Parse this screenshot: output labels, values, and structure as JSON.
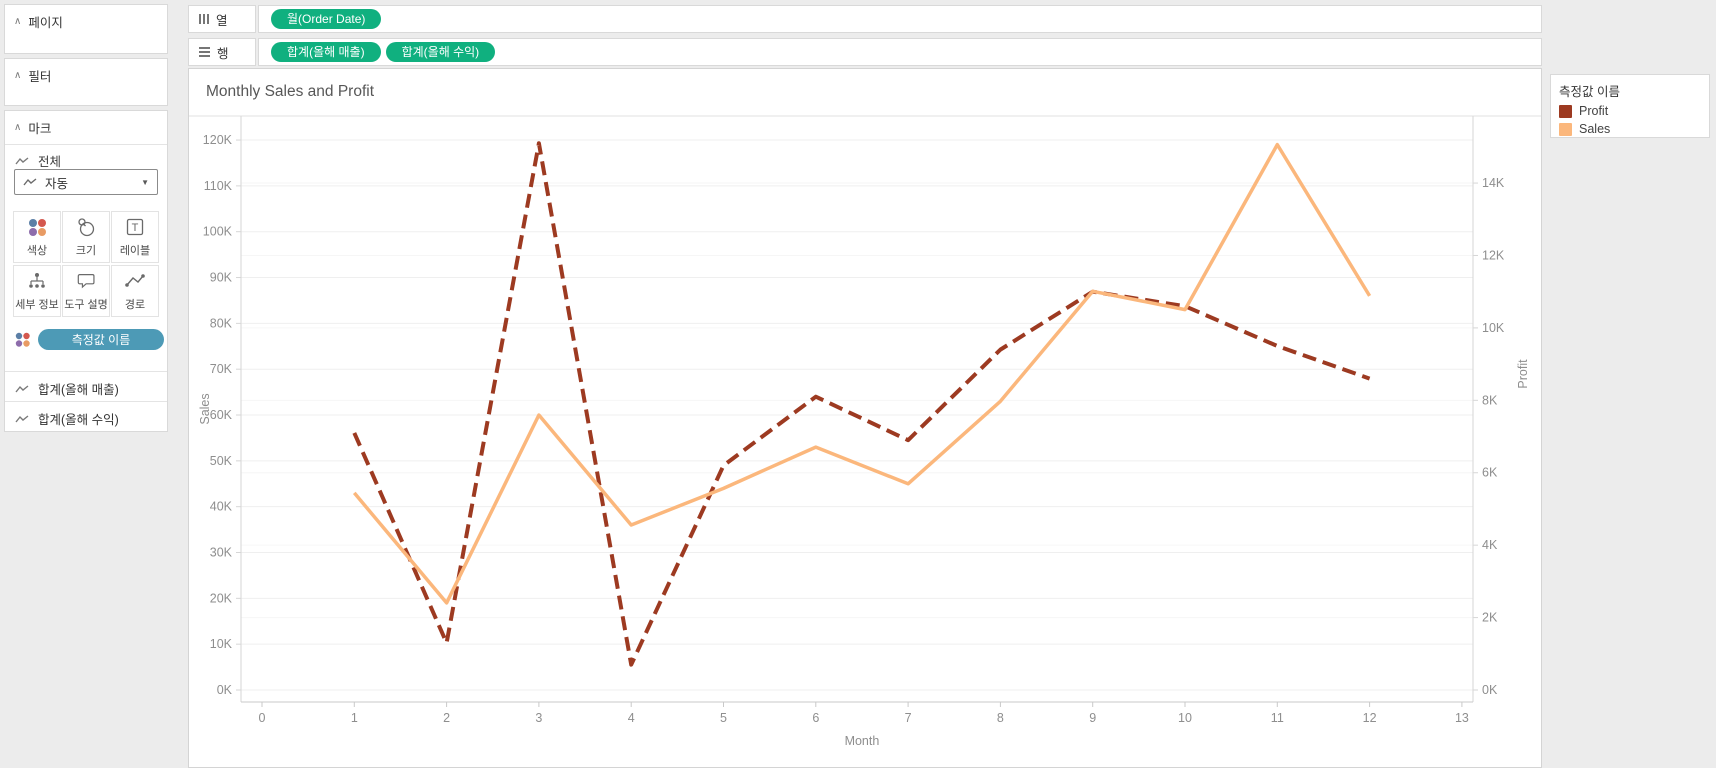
{
  "sidebar": {
    "pages_title": "페이지",
    "filters_title": "필터",
    "marks_title": "마크",
    "all_label": "전체",
    "mark_type_label": "자동",
    "mark_buttons": [
      {
        "label": "색상",
        "icon": "color-icon"
      },
      {
        "label": "크기",
        "icon": "size-icon"
      },
      {
        "label": "레이블",
        "icon": "label-icon"
      },
      {
        "label": "세부 정보",
        "icon": "detail-icon"
      },
      {
        "label": "도구 설명",
        "icon": "tooltip-icon"
      },
      {
        "label": "경로",
        "icon": "path-icon"
      }
    ],
    "color_shelf_pill": "측정값 이름",
    "color_shelf_pill_color": "#4d9ab6",
    "field_rows": [
      "합계(올해 매출)",
      "합계(올해 수익)"
    ]
  },
  "shelves": {
    "columns": {
      "label": "열",
      "pills": [
        "월(Order Date)"
      ]
    },
    "rows": {
      "label": "행",
      "pills": [
        "합계(올해 매출)",
        "합계(올해 수익)"
      ]
    },
    "pill_color": "#10b07f"
  },
  "worksheet": {
    "title": "Monthly Sales and Profit"
  },
  "legend": {
    "title": "측정값 이름",
    "items": [
      {
        "label": "Profit",
        "color": "#9d3a21"
      },
      {
        "label": "Sales",
        "color": "#fbb77c"
      }
    ]
  },
  "chart_data": {
    "type": "line",
    "title": "Monthly Sales and Profit",
    "xlabel": "Month",
    "x": [
      1,
      2,
      3,
      4,
      5,
      6,
      7,
      8,
      9,
      10,
      11,
      12
    ],
    "series": [
      {
        "name": "Profit",
        "axis": "right",
        "color": "#9d3a21",
        "dashed": true,
        "values": [
          7.1,
          1.3,
          15.1,
          0.7,
          6.2,
          8.1,
          6.9,
          9.4,
          11.0,
          10.6,
          9.5,
          8.6
        ]
      },
      {
        "name": "Sales",
        "axis": "left",
        "color": "#fbb77c",
        "dashed": false,
        "values": [
          43,
          19,
          60,
          36,
          44,
          53,
          45,
          63,
          87,
          83,
          119,
          86
        ]
      }
    ],
    "left_axis": {
      "title": "Sales",
      "tick_values": [
        0,
        10,
        20,
        30,
        40,
        50,
        60,
        70,
        80,
        90,
        100,
        110,
        120
      ],
      "tick_suffix": "K",
      "range": [
        0,
        120
      ]
    },
    "right_axis": {
      "title": "Profit",
      "tick_values": [
        0,
        2,
        4,
        6,
        8,
        10,
        12,
        14
      ],
      "tick_suffix": "K",
      "range": [
        0,
        14
      ]
    },
    "x_axis": {
      "title": "Month",
      "tick_values": [
        0,
        1,
        2,
        3,
        4,
        5,
        6,
        7,
        8,
        9,
        10,
        11,
        12,
        13
      ],
      "range": [
        0,
        13
      ]
    },
    "grid": true,
    "legend_position": "top-right"
  }
}
